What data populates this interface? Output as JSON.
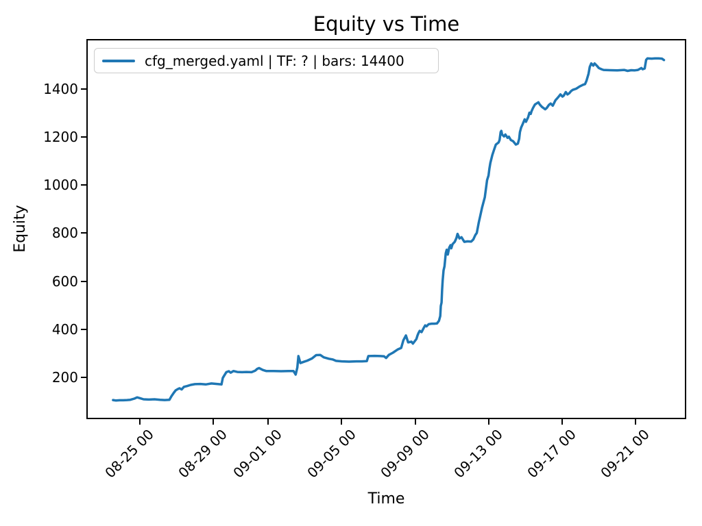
{
  "title": "Equity vs Time",
  "legend": {
    "label": "cfg_merged.yaml | TF: ? | bars: 14400",
    "line_color": "#1f77b4",
    "position": "upper left"
  },
  "chart_data": {
    "type": "line",
    "title": "Equity vs Time",
    "xlabel": "Time",
    "ylabel": "Equity",
    "grid": false,
    "legend_position": "upper left",
    "x_unit": "days since 08-23 00:00",
    "xlim": [
      -0.84,
      31.7
    ],
    "ylim": [
      31,
      1603
    ],
    "xticks": [
      {
        "t": 2,
        "label": "08-25 00"
      },
      {
        "t": 6,
        "label": "08-29 00"
      },
      {
        "t": 9,
        "label": "09-01 00"
      },
      {
        "t": 13,
        "label": "09-05 00"
      },
      {
        "t": 17,
        "label": "09-09 00"
      },
      {
        "t": 21,
        "label": "09-13 00"
      },
      {
        "t": 25,
        "label": "09-17 00"
      },
      {
        "t": 29,
        "label": "09-21 00"
      }
    ],
    "yticks": [
      200,
      400,
      600,
      800,
      1000,
      1200,
      1400
    ],
    "series": [
      {
        "name": "cfg_merged.yaml | TF: ? | bars: 14400",
        "color": "#1f77b4",
        "line_width": 3.5,
        "points": [
          [
            0.54,
            105
          ],
          [
            0.7,
            103
          ],
          [
            0.9,
            104
          ],
          [
            1.1,
            104
          ],
          [
            1.3,
            105
          ],
          [
            1.48,
            106
          ],
          [
            1.7,
            111
          ],
          [
            1.85,
            116
          ],
          [
            2.0,
            113
          ],
          [
            2.2,
            108
          ],
          [
            2.49,
            107
          ],
          [
            2.8,
            108
          ],
          [
            3.1,
            106
          ],
          [
            3.35,
            105
          ],
          [
            3.61,
            106
          ],
          [
            3.72,
            121
          ],
          [
            3.85,
            135
          ],
          [
            3.95,
            145
          ],
          [
            4.05,
            150
          ],
          [
            4.16,
            154
          ],
          [
            4.28,
            149
          ],
          [
            4.4,
            160
          ],
          [
            4.57,
            163
          ],
          [
            4.77,
            168
          ],
          [
            5.0,
            171
          ],
          [
            5.3,
            172
          ],
          [
            5.59,
            170
          ],
          [
            5.9,
            174
          ],
          [
            6.2,
            172
          ],
          [
            6.45,
            170
          ],
          [
            6.52,
            197
          ],
          [
            6.6,
            207
          ],
          [
            6.71,
            221
          ],
          [
            6.85,
            225
          ],
          [
            6.95,
            219
          ],
          [
            7.1,
            226
          ],
          [
            7.31,
            222
          ],
          [
            7.57,
            221
          ],
          [
            7.8,
            222
          ],
          [
            8.09,
            221
          ],
          [
            8.28,
            227
          ],
          [
            8.4,
            235
          ],
          [
            8.5,
            238
          ],
          [
            8.7,
            230
          ],
          [
            8.88,
            226
          ],
          [
            9.3,
            226
          ],
          [
            9.7,
            225
          ],
          [
            10.1,
            226
          ],
          [
            10.37,
            226
          ],
          [
            10.49,
            211
          ],
          [
            10.58,
            240
          ],
          [
            10.64,
            288
          ],
          [
            10.75,
            259
          ],
          [
            10.93,
            264
          ],
          [
            11.12,
            269
          ],
          [
            11.38,
            278
          ],
          [
            11.61,
            292
          ],
          [
            11.83,
            293
          ],
          [
            12.02,
            283
          ],
          [
            12.3,
            277
          ],
          [
            12.5,
            274
          ],
          [
            12.69,
            268
          ],
          [
            13.0,
            266
          ],
          [
            13.4,
            265
          ],
          [
            13.8,
            266
          ],
          [
            14.1,
            266
          ],
          [
            14.37,
            267
          ],
          [
            14.45,
            288
          ],
          [
            14.8,
            289
          ],
          [
            15.1,
            288
          ],
          [
            15.31,
            287
          ],
          [
            15.42,
            280
          ],
          [
            15.57,
            293
          ],
          [
            15.79,
            302
          ],
          [
            16.06,
            316
          ],
          [
            16.24,
            322
          ],
          [
            16.36,
            354
          ],
          [
            16.5,
            374
          ],
          [
            16.62,
            345
          ],
          [
            16.8,
            348
          ],
          [
            16.88,
            340
          ],
          [
            17.07,
            359
          ],
          [
            17.13,
            374
          ],
          [
            17.18,
            383
          ],
          [
            17.25,
            393
          ],
          [
            17.35,
            388
          ],
          [
            17.48,
            407
          ],
          [
            17.55,
            416
          ],
          [
            17.62,
            412
          ],
          [
            17.74,
            421
          ],
          [
            17.9,
            423
          ],
          [
            18.05,
            423
          ],
          [
            18.19,
            424
          ],
          [
            18.3,
            435
          ],
          [
            18.37,
            455
          ],
          [
            18.4,
            497
          ],
          [
            18.44,
            511
          ],
          [
            18.47,
            564
          ],
          [
            18.5,
            602
          ],
          [
            18.55,
            645
          ],
          [
            18.6,
            662
          ],
          [
            18.67,
            716
          ],
          [
            18.72,
            731
          ],
          [
            18.78,
            711
          ],
          [
            18.86,
            740
          ],
          [
            18.93,
            750
          ],
          [
            18.97,
            737
          ],
          [
            19.04,
            754
          ],
          [
            19.16,
            764
          ],
          [
            19.25,
            780
          ],
          [
            19.31,
            797
          ],
          [
            19.42,
            778
          ],
          [
            19.53,
            783
          ],
          [
            19.68,
            764
          ],
          [
            19.85,
            766
          ],
          [
            20.06,
            765
          ],
          [
            20.17,
            774
          ],
          [
            20.28,
            792
          ],
          [
            20.36,
            801
          ],
          [
            20.47,
            845
          ],
          [
            20.54,
            869
          ],
          [
            20.65,
            907
          ],
          [
            20.8,
            950
          ],
          [
            20.92,
            1021
          ],
          [
            21.0,
            1040
          ],
          [
            21.05,
            1069
          ],
          [
            21.1,
            1093
          ],
          [
            21.21,
            1126
          ],
          [
            21.29,
            1145
          ],
          [
            21.4,
            1169
          ],
          [
            21.5,
            1175
          ],
          [
            21.55,
            1178
          ],
          [
            21.6,
            1188
          ],
          [
            21.66,
            1221
          ],
          [
            21.7,
            1226
          ],
          [
            21.74,
            1211
          ],
          [
            21.85,
            1203
          ],
          [
            21.92,
            1211
          ],
          [
            22.04,
            1197
          ],
          [
            22.11,
            1202
          ],
          [
            22.22,
            1188
          ],
          [
            22.34,
            1183
          ],
          [
            22.49,
            1169
          ],
          [
            22.6,
            1173
          ],
          [
            22.67,
            1193
          ],
          [
            22.71,
            1221
          ],
          [
            22.78,
            1240
          ],
          [
            22.86,
            1254
          ],
          [
            22.97,
            1274
          ],
          [
            23.04,
            1264
          ],
          [
            23.16,
            1283
          ],
          [
            23.23,
            1302
          ],
          [
            23.3,
            1297
          ],
          [
            23.34,
            1307
          ],
          [
            23.42,
            1321
          ],
          [
            23.53,
            1336
          ],
          [
            23.61,
            1340
          ],
          [
            23.72,
            1345
          ],
          [
            23.79,
            1336
          ],
          [
            23.91,
            1326
          ],
          [
            24.09,
            1316
          ],
          [
            24.17,
            1321
          ],
          [
            24.3,
            1335
          ],
          [
            24.39,
            1340
          ],
          [
            24.5,
            1331
          ],
          [
            24.65,
            1354
          ],
          [
            24.77,
            1364
          ],
          [
            24.92,
            1378
          ],
          [
            25.03,
            1369
          ],
          [
            25.1,
            1373
          ],
          [
            25.21,
            1388
          ],
          [
            25.3,
            1378
          ],
          [
            25.4,
            1383
          ],
          [
            25.5,
            1392
          ],
          [
            25.59,
            1397
          ],
          [
            25.78,
            1402
          ],
          [
            25.96,
            1411
          ],
          [
            26.15,
            1418
          ],
          [
            26.26,
            1421
          ],
          [
            26.34,
            1435
          ],
          [
            26.45,
            1464
          ],
          [
            26.52,
            1493
          ],
          [
            26.6,
            1507
          ],
          [
            26.66,
            1502
          ],
          [
            26.71,
            1498
          ],
          [
            26.78,
            1507
          ],
          [
            26.9,
            1498
          ],
          [
            27.01,
            1488
          ],
          [
            27.16,
            1483
          ],
          [
            27.27,
            1480
          ],
          [
            27.64,
            1479
          ],
          [
            28.02,
            1478
          ],
          [
            28.39,
            1480
          ],
          [
            28.58,
            1476
          ],
          [
            28.77,
            1479
          ],
          [
            28.95,
            1478
          ],
          [
            29.14,
            1480
          ],
          [
            29.33,
            1488
          ],
          [
            29.4,
            1483
          ],
          [
            29.51,
            1486
          ],
          [
            29.59,
            1522
          ],
          [
            29.66,
            1528
          ],
          [
            29.89,
            1527
          ],
          [
            30.07,
            1528
          ],
          [
            30.26,
            1528
          ],
          [
            30.45,
            1527
          ],
          [
            30.56,
            1521
          ]
        ]
      }
    ]
  }
}
